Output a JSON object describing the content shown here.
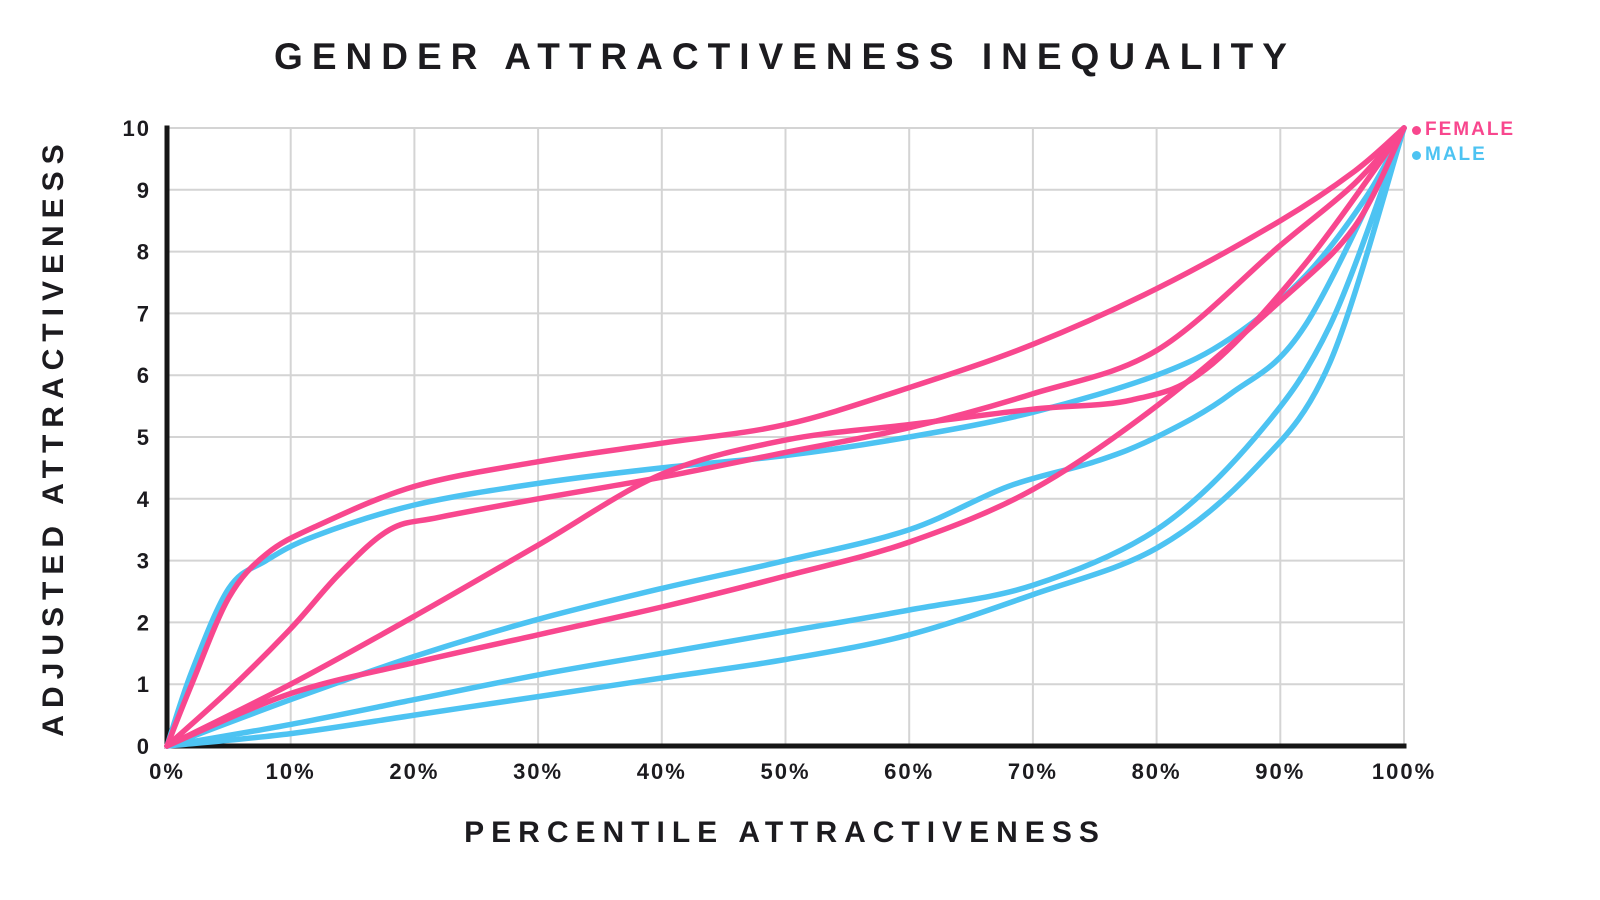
{
  "chart_data": {
    "type": "line",
    "title": "GENDER ATTRACTIVENESS INEQUALITY",
    "xlabel": "PERCENTILE ATTRACTIVENESS",
    "ylabel": "ADJUSTED ATTRACTIVENESS",
    "xlim": [
      0,
      100
    ],
    "ylim": [
      0,
      10
    ],
    "x_ticks": [
      0,
      10,
      20,
      30,
      40,
      50,
      60,
      70,
      80,
      90,
      100
    ],
    "x_tick_labels": [
      "0%",
      "10%",
      "20%",
      "30%",
      "40%",
      "50%",
      "60%",
      "70%",
      "80%",
      "90%",
      "100%"
    ],
    "y_ticks": [
      0,
      1,
      2,
      3,
      4,
      5,
      6,
      7,
      8,
      9,
      10
    ],
    "grid": true,
    "colors": {
      "female": "#F8478E",
      "male": "#4DC3F2",
      "grid": "#d4d4d4",
      "axis": "#161616",
      "text": "#1c1b1f",
      "background": "#ffffff"
    },
    "legend": {
      "position": "top-right-outside",
      "items": [
        {
          "label": "FEMALE",
          "color": "#F8478E"
        },
        {
          "label": "MALE",
          "color": "#4DC3F2"
        }
      ]
    },
    "series": [
      {
        "name": "male-1",
        "gender": "MALE",
        "color": "#4DC3F2",
        "x": [
          0,
          2,
          5,
          8,
          12,
          20,
          30,
          40,
          50,
          60,
          70,
          80,
          86,
          92,
          97,
          100
        ],
        "values": [
          0,
          1.2,
          2.55,
          3.0,
          3.4,
          3.9,
          4.25,
          4.5,
          4.7,
          5.0,
          5.4,
          6.0,
          6.6,
          7.6,
          8.9,
          10
        ]
      },
      {
        "name": "male-2",
        "gender": "MALE",
        "color": "#4DC3F2",
        "x": [
          0,
          10,
          20,
          30,
          40,
          50,
          60,
          68,
          75,
          80,
          86,
          92,
          100
        ],
        "values": [
          0,
          0.75,
          1.45,
          2.05,
          2.55,
          3.0,
          3.5,
          4.2,
          4.6,
          5.0,
          5.7,
          6.8,
          10
        ]
      },
      {
        "name": "male-3",
        "gender": "MALE",
        "color": "#4DC3F2",
        "x": [
          0,
          10,
          20,
          30,
          40,
          50,
          60,
          70,
          80,
          88,
          94,
          100
        ],
        "values": [
          0,
          0.35,
          0.75,
          1.15,
          1.5,
          1.85,
          2.2,
          2.6,
          3.5,
          5.0,
          6.8,
          10
        ]
      },
      {
        "name": "male-4",
        "gender": "MALE",
        "color": "#4DC3F2",
        "x": [
          0,
          10,
          20,
          30,
          40,
          50,
          60,
          70,
          80,
          88,
          94,
          100
        ],
        "values": [
          0,
          0.2,
          0.5,
          0.8,
          1.1,
          1.4,
          1.8,
          2.45,
          3.2,
          4.5,
          6.2,
          10
        ]
      },
      {
        "name": "female-1",
        "gender": "FEMALE",
        "color": "#F8478E",
        "x": [
          0,
          2,
          5,
          8,
          12,
          20,
          30,
          40,
          50,
          60,
          70,
          80,
          90,
          96,
          100
        ],
        "values": [
          0,
          1.0,
          2.4,
          3.1,
          3.55,
          4.2,
          4.6,
          4.9,
          5.2,
          5.8,
          6.5,
          7.4,
          8.5,
          9.3,
          10
        ]
      },
      {
        "name": "female-2",
        "gender": "FEMALE",
        "color": "#F8478E",
        "x": [
          0,
          5,
          10,
          14,
          18,
          22,
          30,
          40,
          50,
          60,
          70,
          80,
          90,
          96,
          100
        ],
        "values": [
          0,
          0.9,
          1.9,
          2.8,
          3.5,
          3.7,
          4.0,
          4.35,
          4.75,
          5.15,
          5.7,
          6.4,
          8.1,
          9.1,
          10
        ]
      },
      {
        "name": "female-3",
        "gender": "FEMALE",
        "color": "#F8478E",
        "x": [
          0,
          10,
          20,
          30,
          40,
          50,
          60,
          70,
          78,
          84,
          92,
          100
        ],
        "values": [
          0,
          1.0,
          2.1,
          3.25,
          4.4,
          4.95,
          5.2,
          5.45,
          5.6,
          6.1,
          7.8,
          10
        ]
      },
      {
        "name": "female-4",
        "gender": "FEMALE",
        "color": "#F8478E",
        "x": [
          0,
          10,
          20,
          30,
          40,
          50,
          60,
          70,
          80,
          90,
          96,
          100
        ],
        "values": [
          0,
          0.85,
          1.35,
          1.8,
          2.25,
          2.75,
          3.3,
          4.15,
          5.5,
          7.2,
          8.4,
          10
        ]
      }
    ]
  }
}
